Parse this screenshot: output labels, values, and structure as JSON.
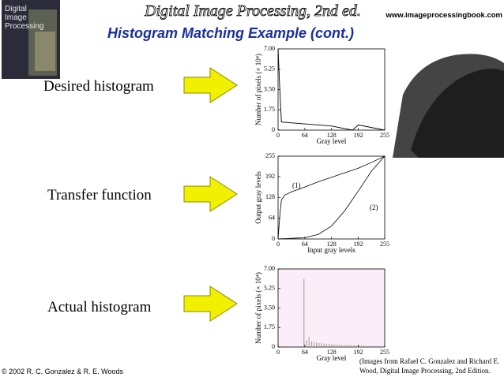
{
  "header": {
    "book_title": "Digital Image Processing, 2nd ed.",
    "website": "www.imageprocessingbook.com",
    "slide_title": "Histogram Matching Example (cont.)"
  },
  "cover": {
    "title_lines": [
      "Digital",
      "Image",
      "Processing"
    ]
  },
  "row_labels": [
    "Desired histogram",
    "Transfer function",
    "Actual histogram"
  ],
  "footer": {
    "copyright": "© 2002 R. C. Gonzalez & R. E. Woods",
    "caption_lines": [
      "(Images from Rafael C. Gonzalez and Richard E.",
      "Wood, Digital Image Processing, 2nd Edition."
    ]
  },
  "chart_data": [
    {
      "type": "line",
      "xlabel": "Gray level",
      "ylabel": "Number of pixels (× 10⁴)",
      "x": [
        0,
        4,
        8,
        128,
        178,
        192,
        255
      ],
      "values": [
        7.0,
        3.6,
        0.7,
        0.35,
        0.0,
        0.45,
        0.0
      ],
      "color": "#000000",
      "xlim": [
        0,
        255
      ],
      "ylim": [
        0,
        7
      ],
      "xticks": [
        0,
        64,
        128,
        192,
        255
      ],
      "yticks": [
        0,
        1.75,
        {
          "value": 3.5,
          "label": "3.50"
        },
        5.25,
        {
          "value": 7,
          "label": "7.00"
        }
      ]
    },
    {
      "type": "line",
      "xlabel": "Input gray levels",
      "ylabel": "Output gray levels",
      "x": [
        0,
        4,
        8,
        16,
        32,
        64,
        96,
        128,
        160,
        192,
        224,
        255
      ],
      "series": [
        {
          "color": "#000000",
          "values": [
            0,
            70,
            120,
            135,
            145,
            160,
            176,
            190,
            204,
            218,
            236,
            255
          ]
        },
        {
          "color": "#000000",
          "values": [
            0,
            0,
            1,
            1,
            2,
            4,
            14,
            40,
            88,
            148,
            210,
            255
          ]
        }
      ],
      "annotations": [
        "(1)",
        "(2)"
      ],
      "xlim": [
        0,
        255
      ],
      "ylim": [
        0,
        255
      ],
      "xticks": [
        0,
        64,
        128,
        192,
        255
      ],
      "yticks": [
        0,
        64,
        128,
        192,
        255
      ]
    },
    {
      "type": "stem",
      "xlabel": "Gray level",
      "ylabel": "Number of pixels (× 10⁴)",
      "x": [
        62,
        68,
        74,
        80,
        86,
        92,
        98,
        104,
        110,
        116,
        122,
        128,
        134,
        140,
        146,
        152,
        158,
        164,
        170,
        176,
        182,
        188,
        194,
        200,
        206,
        212,
        218,
        224,
        230,
        236,
        242,
        248
      ],
      "values": [
        6.1,
        0.6,
        0.9,
        0.5,
        0.45,
        0.4,
        0.35,
        0.35,
        0.3,
        0.3,
        0.28,
        0.25,
        0.25,
        0.22,
        0.2,
        0.2,
        0.2,
        0.18,
        0.18,
        0.18,
        0.15,
        0.15,
        0.15,
        0.15,
        0.12,
        0.12,
        0.12,
        0.12,
        0.1,
        0.1,
        0.1,
        0.1
      ],
      "color": "#9a9a9a",
      "background": "#fbeef8",
      "xlim": [
        0,
        255
      ],
      "ylim": [
        0,
        7
      ],
      "xticks": [
        0,
        64,
        128,
        192,
        255
      ],
      "yticks": [
        0,
        1.75,
        {
          "value": 3.5,
          "label": "3.50"
        },
        5.25,
        {
          "value": 7,
          "label": "7.00"
        }
      ]
    }
  ]
}
